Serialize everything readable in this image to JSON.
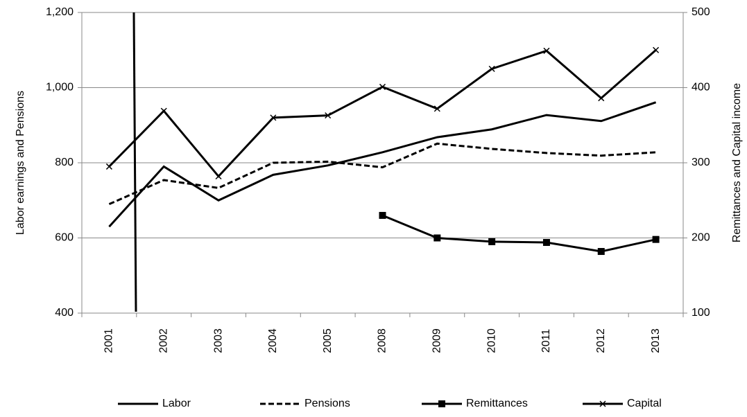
{
  "chart_data": {
    "type": "line",
    "categories": [
      "2001",
      "2002",
      "2003",
      "2004",
      "2005",
      "2008",
      "2009",
      "2010",
      "2011",
      "2012",
      "2013"
    ],
    "ylabel": "Labor earnings and Pensions",
    "y2label": "Remittances and Capital income",
    "ylim": [
      400,
      1200
    ],
    "yticks": [
      400,
      600,
      800,
      {
        "value": 1000,
        "label": "1,000"
      },
      {
        "value": 1200,
        "label": "1,200"
      }
    ],
    "y2lim": [
      100,
      500
    ],
    "y2ticks": [
      100,
      200,
      300,
      400,
      500
    ],
    "grid": true,
    "legend": "bottom",
    "series": [
      {
        "name": "Labor",
        "color": "#000000",
        "values": [
          630,
          790,
          700,
          768,
          793,
          828,
          868,
          889,
          927,
          911,
          961
        ]
      },
      {
        "name": "Pensions",
        "color": "#000000",
        "dash": true,
        "values": [
          690,
          754,
          733,
          800,
          803,
          788,
          851,
          837,
          826,
          819,
          828
        ]
      },
      {
        "name": "Remittances",
        "color": "#000000",
        "marker": "square",
        "axis": "y2",
        "values": [
          null,
          null,
          null,
          null,
          null,
          230,
          200,
          195,
          194,
          182,
          198
        ]
      },
      {
        "name": "Capital",
        "color": "#000000",
        "marker": "x",
        "axis": "y2",
        "values": [
          295,
          369,
          282,
          360,
          363,
          401,
          372,
          425,
          449,
          386,
          450
        ]
      }
    ]
  }
}
